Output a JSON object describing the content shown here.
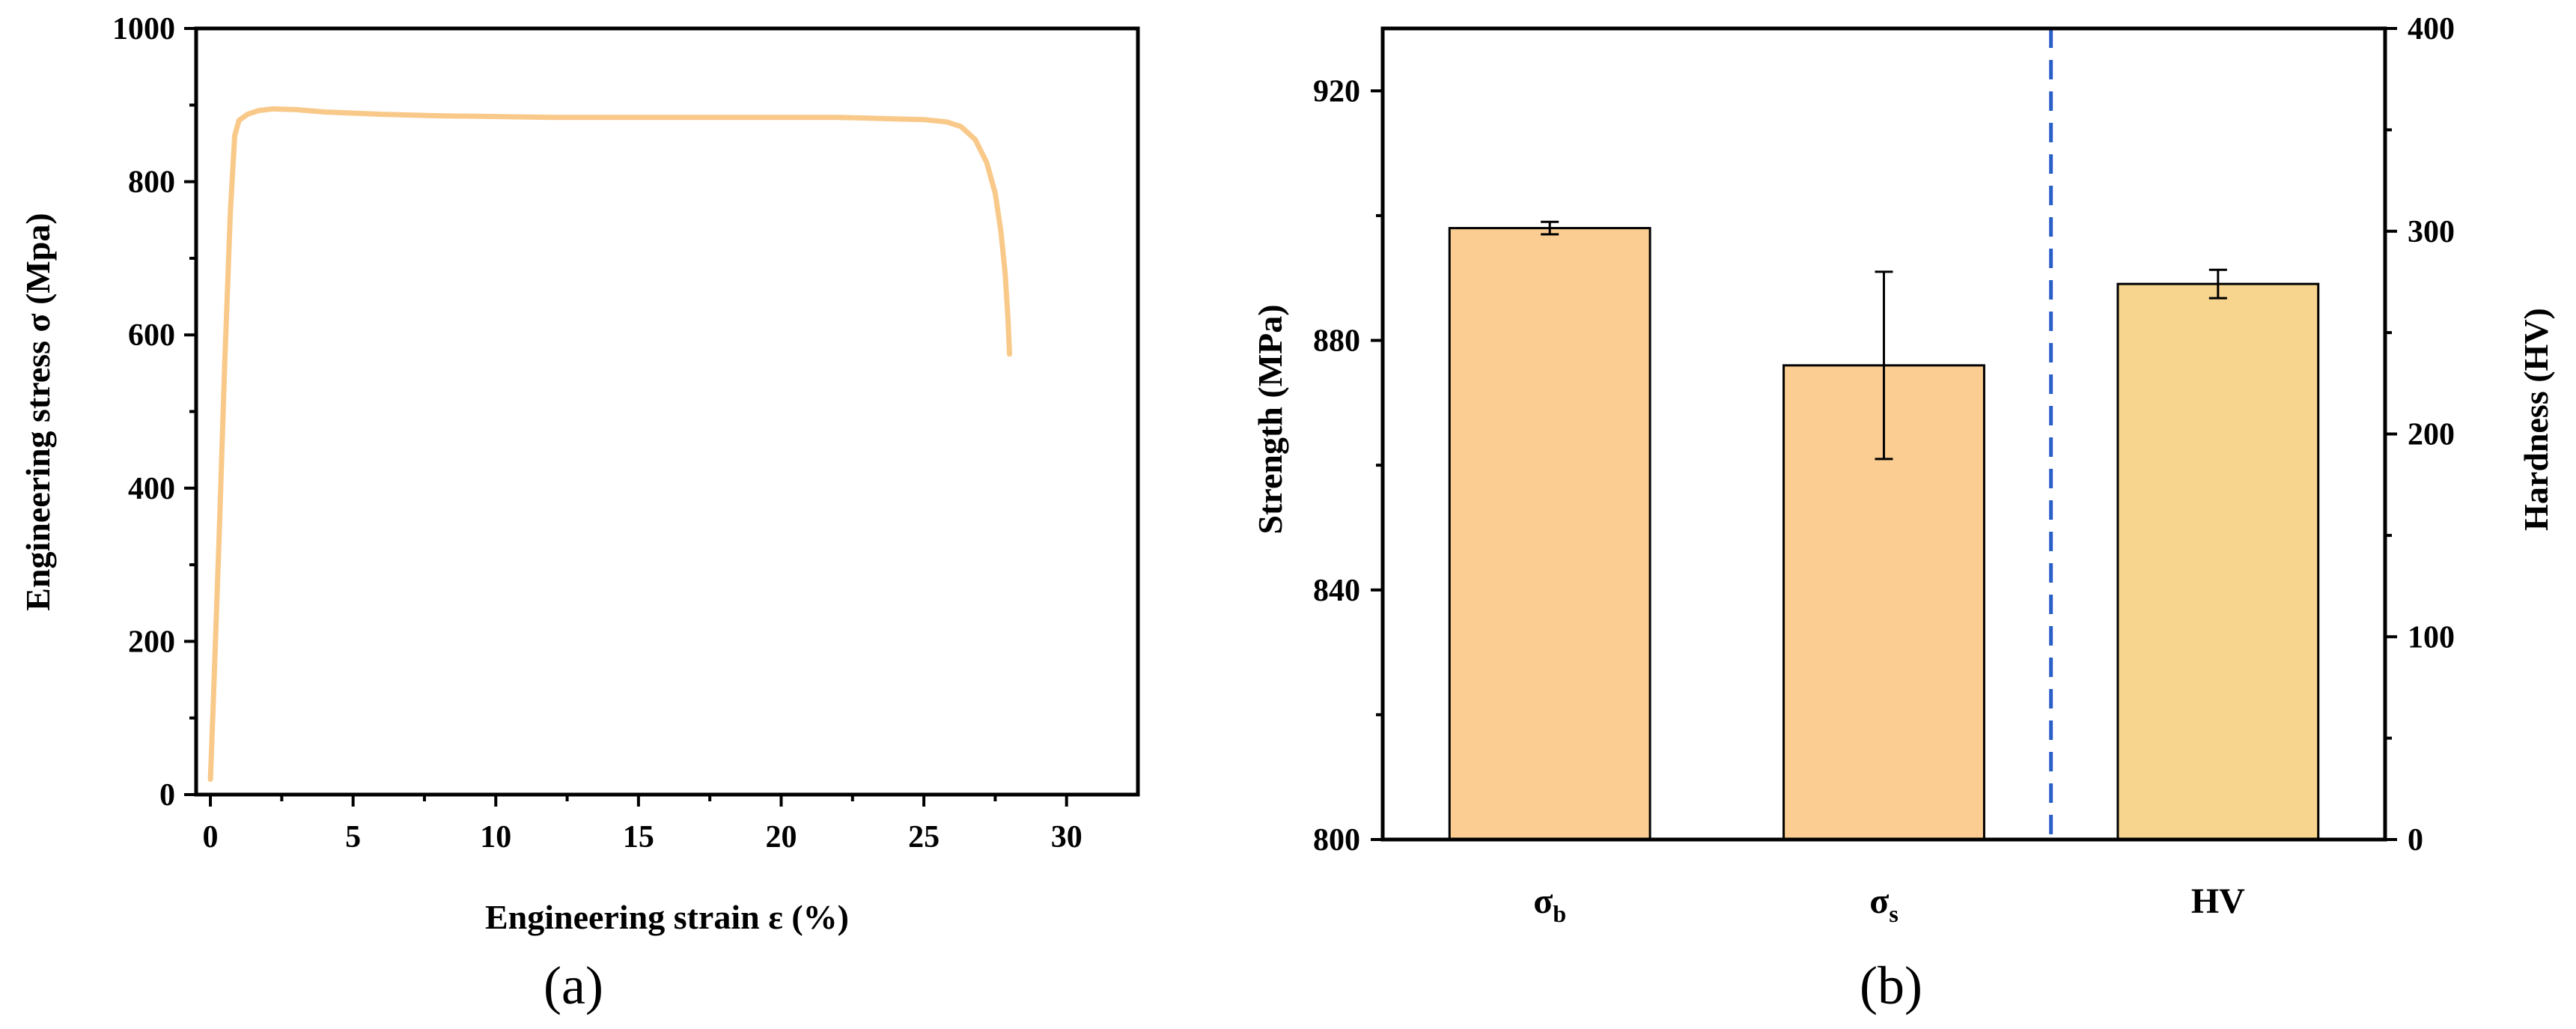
{
  "panel_a_label": "(a)",
  "panel_b_label": "(b)",
  "colors": {
    "curve": "#f9c98a",
    "bar_strength": "#fccd92",
    "bar_hardness": "#f7d58e",
    "divider": "#2a5fc8",
    "axis": "#000000"
  },
  "chart_data": [
    {
      "type": "line",
      "xlabel": "Engineering strain ε (%)",
      "ylabel": "Engineering stress σ (Mpa)",
      "xlim": [
        -0.5,
        32.5
      ],
      "ylim": [
        0,
        1000
      ],
      "xticks": [
        0,
        5,
        10,
        15,
        20,
        25,
        30
      ],
      "yticks": [
        0,
        200,
        400,
        600,
        800,
        1000
      ],
      "grid": false,
      "series": [
        {
          "x": [
            0.0,
            0.1,
            0.3,
            0.5,
            0.7,
            0.85,
            1.0,
            1.3,
            1.7,
            2.2,
            3.0,
            4.0,
            6.0,
            8.0,
            10.0,
            12.0,
            15.0,
            18.0,
            20.0,
            22.0,
            24.0,
            25.0,
            25.8,
            26.3,
            26.8,
            27.2,
            27.5,
            27.7,
            27.85,
            27.95,
            28.0
          ],
          "y": [
            20,
            120,
            330,
            560,
            760,
            860,
            880,
            888,
            893,
            895,
            894,
            891,
            888,
            886,
            885,
            884,
            884,
            884,
            884,
            884,
            882,
            881,
            878,
            872,
            855,
            825,
            785,
            735,
            680,
            620,
            575
          ]
        }
      ]
    },
    {
      "type": "bar",
      "categories": [
        "σ",
        "σ",
        "HV"
      ],
      "category_subscripts": [
        "b",
        "s",
        ""
      ],
      "ylabel": "Strength (MPa)",
      "ylabel_right": "Hardness (HV)",
      "ylim": [
        800,
        930
      ],
      "ylim_right": [
        0,
        400
      ],
      "yticks": [
        800,
        840,
        880,
        920
      ],
      "yticks_right": [
        0,
        100,
        200,
        300,
        400
      ],
      "values": [
        898,
        876,
        274
      ],
      "errors": [
        1,
        15,
        7
      ],
      "axis_side": [
        "left",
        "left",
        "right"
      ],
      "divider_after_category": 1,
      "grid": false
    }
  ]
}
